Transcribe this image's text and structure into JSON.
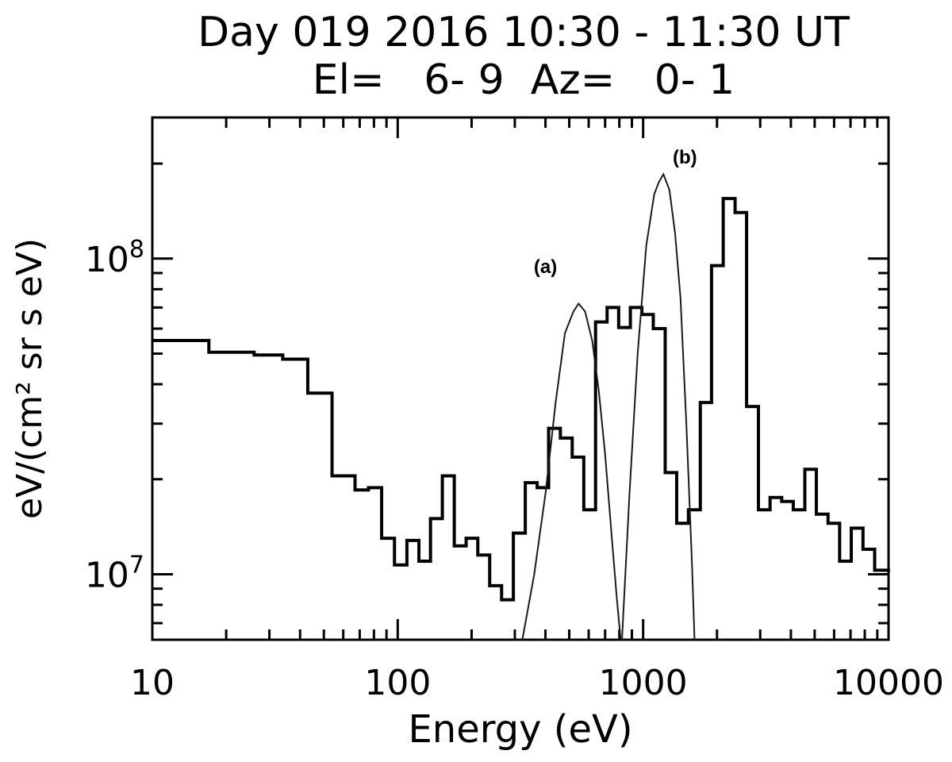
{
  "chart_data": {
    "type": "line",
    "title": "Day 019 2016 10:30 - 11:30 UT",
    "subtitle": "El=   6- 9  Az=   0- 1",
    "xlabel": "Energy (eV)",
    "ylabel": "eV/(cm² sr s eV)",
    "xscale": "log",
    "yscale": "log",
    "xlim": [
      10,
      10000
    ],
    "ylim": [
      6200000,
      280000000
    ],
    "xticks": [
      10,
      100,
      1000,
      10000
    ],
    "xtick_labels": [
      "10",
      "100",
      "1000",
      "10000"
    ],
    "yticks": [
      10000000,
      100000000
    ],
    "ytick_labels": [
      {
        "base": "10",
        "exp": "7"
      },
      {
        "base": "10",
        "exp": "8"
      }
    ],
    "grid": false,
    "annotations": [
      {
        "text": "(a)",
        "x": 400,
        "y": 90000000
      },
      {
        "text": "(b)",
        "x": 1480,
        "y": 200000000
      }
    ],
    "series": [
      {
        "style": "step",
        "x": [
          10,
          17,
          26,
          34,
          43,
          54,
          67,
          76,
          86,
          97,
          109,
          122,
          136,
          152,
          170,
          190,
          212,
          237,
          265,
          296,
          331,
          370,
          412,
          460,
          514,
          573,
          640,
          713,
          795,
          887,
          988,
          1100,
          1230,
          1370,
          1530,
          1710,
          1900,
          2120,
          2370,
          2640,
          2950,
          3290,
          3670,
          4090,
          4560,
          5080,
          5670,
          6320,
          7050,
          7870,
          8780,
          10000
        ],
        "y": [
          55000000,
          50500000,
          49500000,
          48000000,
          37500000,
          20500000,
          18500000,
          18800000,
          13000000,
          10700000,
          12800000,
          11000000,
          15000000,
          20500000,
          12300000,
          13000000,
          11500000,
          9200000,
          8300000,
          13500000,
          19500000,
          18800000,
          29000000,
          27000000,
          23500000,
          16000000,
          63000000,
          70000000,
          60500000,
          70000000,
          66500000,
          60000000,
          21000000,
          14500000,
          16000000,
          35000000,
          95000000,
          155000000,
          140000000,
          34000000,
          16000000,
          17500000,
          17000000,
          16000000,
          21500000,
          15500000,
          14500000,
          11000000,
          14000000,
          12000000,
          10300000,
          10400000
        ]
      },
      {
        "style": "line",
        "x": [
          322,
          360,
          400,
          440,
          480,
          520,
          546,
          580,
          620,
          660,
          700,
          740,
          780,
          810
        ],
        "y": [
          6200000,
          10000000,
          18000000,
          35000000,
          58000000,
          68000000,
          72000000,
          68000000,
          55000000,
          38000000,
          24000000,
          14000000,
          8500000,
          6200000
        ]
      },
      {
        "style": "line",
        "x": [
          820,
          880,
          950,
          1030,
          1110,
          1160,
          1210,
          1280,
          1350,
          1420,
          1500,
          1580,
          1620
        ],
        "y": [
          6200000,
          18000000,
          50000000,
          110000000,
          160000000,
          175000000,
          185000000,
          165000000,
          120000000,
          75000000,
          30000000,
          11000000,
          6200000
        ]
      }
    ]
  }
}
